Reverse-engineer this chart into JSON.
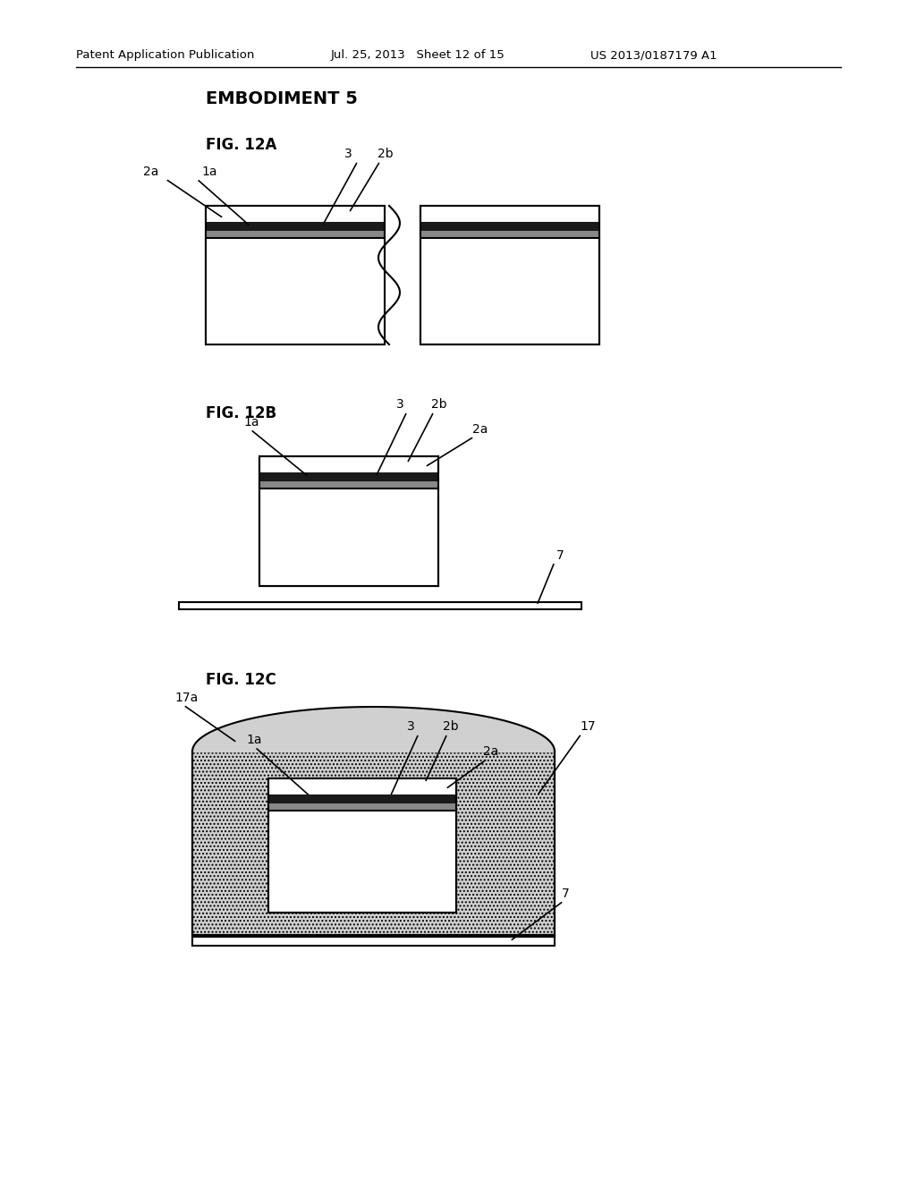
{
  "header_left": "Patent Application Publication",
  "header_mid": "Jul. 25, 2013   Sheet 12 of 15",
  "header_right": "US 2013/0187179 A1",
  "section_title": "EMBODIMENT 5",
  "fig12a_label": "FIG. 12A",
  "fig12b_label": "FIG. 12B",
  "fig12c_label": "FIG. 12C",
  "bg_color": "#ffffff",
  "line_color": "#000000",
  "dark_layer_color": "#1a1a1a",
  "medium_layer_color": "#555555",
  "dot_color": "#aaaaaa"
}
